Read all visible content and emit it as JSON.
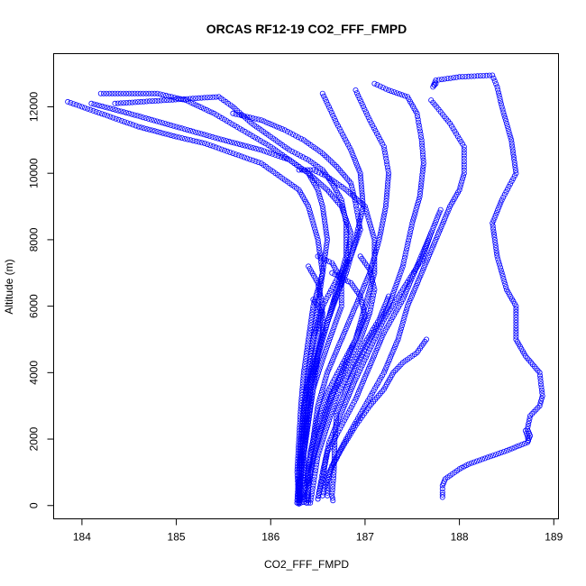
{
  "chart_data": {
    "type": "scatter",
    "title": "ORCAS RF12-19 CO2_FFF_FMPD",
    "xlabel": "CO2_FFF_FMPD",
    "ylabel": "Altitude (m)",
    "xlim": [
      183.7,
      189.05
    ],
    "ylim": [
      -400,
      13600
    ],
    "xticks": [
      184,
      185,
      186,
      187,
      188,
      189
    ],
    "yticks": [
      0,
      2000,
      4000,
      6000,
      8000,
      10000,
      12000
    ],
    "marker": "open-circle",
    "color": "#0000ff",
    "grid": false,
    "profiles": [
      [
        [
          186.55,
          12400
        ],
        [
          186.7,
          11500
        ],
        [
          186.85,
          10700
        ],
        [
          186.95,
          10000
        ],
        [
          186.98,
          9000
        ],
        [
          186.9,
          8000
        ],
        [
          186.8,
          7000
        ],
        [
          186.65,
          6000
        ],
        [
          186.55,
          5000
        ],
        [
          186.45,
          4000
        ],
        [
          186.4,
          3000
        ],
        [
          186.35,
          2000
        ],
        [
          186.3,
          1000
        ],
        [
          186.3,
          50
        ]
      ],
      [
        [
          186.9,
          12500
        ],
        [
          187.05,
          11600
        ],
        [
          187.2,
          10800
        ],
        [
          187.25,
          10000
        ],
        [
          187.22,
          9000
        ],
        [
          187.15,
          8000
        ],
        [
          187.05,
          7000
        ],
        [
          186.9,
          6000
        ],
        [
          186.75,
          5000
        ],
        [
          186.6,
          4000
        ],
        [
          186.5,
          3000
        ],
        [
          186.45,
          2000
        ],
        [
          186.4,
          1000
        ],
        [
          186.4,
          80
        ]
      ],
      [
        [
          187.1,
          12700
        ],
        [
          187.25,
          12500
        ],
        [
          187.45,
          12300
        ],
        [
          187.55,
          11800
        ],
        [
          187.6,
          11000
        ],
        [
          187.62,
          10300
        ],
        [
          187.58,
          9300
        ],
        [
          187.5,
          8500
        ],
        [
          187.4,
          7200
        ],
        [
          187.25,
          6000
        ],
        [
          187.05,
          5000
        ],
        [
          186.9,
          4200
        ],
        [
          186.8,
          3500
        ],
        [
          186.7,
          2800
        ],
        [
          186.68,
          2000
        ],
        [
          186.67,
          1000
        ],
        [
          186.65,
          300
        ],
        [
          186.66,
          150
        ]
      ],
      [
        [
          187.7,
          12200
        ],
        [
          187.9,
          11500
        ],
        [
          188.05,
          10800
        ],
        [
          188.05,
          10000
        ],
        [
          188.0,
          9500
        ],
        [
          187.9,
          9000
        ],
        [
          187.75,
          8000
        ],
        [
          187.6,
          7000
        ],
        [
          187.45,
          6000
        ],
        [
          187.35,
          5000
        ],
        [
          187.2,
          4000
        ],
        [
          187.0,
          3000
        ],
        [
          186.8,
          2000
        ],
        [
          186.65,
          1200
        ],
        [
          186.6,
          700
        ],
        [
          186.6,
          300
        ]
      ],
      [
        [
          187.75,
          12700
        ],
        [
          187.72,
          12600
        ],
        [
          187.75,
          12800
        ],
        [
          188.0,
          12900
        ],
        [
          188.35,
          12950
        ],
        [
          188.4,
          12600
        ],
        [
          188.45,
          12000
        ],
        [
          188.55,
          11000
        ],
        [
          188.6,
          10000
        ],
        [
          188.45,
          9200
        ],
        [
          188.35,
          8500
        ],
        [
          188.4,
          7500
        ],
        [
          188.5,
          6500
        ],
        [
          188.6,
          6000
        ],
        [
          188.6,
          5000
        ],
        [
          188.7,
          4500
        ],
        [
          188.85,
          4000
        ],
        [
          188.88,
          3300
        ],
        [
          188.85,
          3000
        ],
        [
          188.75,
          2700
        ],
        [
          188.72,
          2300
        ],
        [
          188.75,
          2100
        ],
        [
          188.72,
          1900
        ],
        [
          188.5,
          1650
        ],
        [
          188.3,
          1450
        ],
        [
          188.1,
          1250
        ],
        [
          188.0,
          1100
        ],
        [
          187.95,
          1000
        ],
        [
          187.85,
          800
        ],
        [
          187.82,
          600
        ],
        [
          187.82,
          400
        ],
        [
          187.82,
          250
        ]
      ],
      [
        [
          188.7,
          2250
        ],
        [
          188.72,
          2100
        ],
        [
          188.73,
          1950
        ]
      ],
      [
        [
          183.85,
          12150
        ],
        [
          184.0,
          12000
        ],
        [
          184.3,
          11700
        ],
        [
          184.6,
          11400
        ],
        [
          185.0,
          11100
        ],
        [
          185.3,
          10900
        ],
        [
          185.6,
          10600
        ],
        [
          185.9,
          10300
        ],
        [
          186.1,
          9900
        ],
        [
          186.3,
          9500
        ],
        [
          186.4,
          9000
        ],
        [
          186.45,
          8500
        ],
        [
          186.5,
          8000
        ],
        [
          186.55,
          7000
        ],
        [
          186.45,
          6000
        ],
        [
          186.4,
          5000
        ],
        [
          186.35,
          4000
        ],
        [
          186.32,
          3000
        ],
        [
          186.3,
          2000
        ],
        [
          186.28,
          1000
        ],
        [
          186.3,
          100
        ]
      ],
      [
        [
          184.2,
          12400
        ],
        [
          184.8,
          12400
        ],
        [
          185.1,
          12200
        ],
        [
          185.4,
          11800
        ],
        [
          185.7,
          11300
        ],
        [
          186.0,
          10800
        ],
        [
          186.2,
          10400
        ],
        [
          186.4,
          10000
        ],
        [
          186.5,
          9500
        ],
        [
          186.55,
          9000
        ],
        [
          186.6,
          8000
        ],
        [
          186.55,
          7000
        ],
        [
          186.5,
          6000
        ],
        [
          186.45,
          5000
        ],
        [
          186.4,
          4000
        ],
        [
          186.35,
          3000
        ],
        [
          186.32,
          2000
        ],
        [
          186.3,
          1000
        ],
        [
          186.28,
          80
        ]
      ],
      [
        [
          184.35,
          12100
        ],
        [
          184.9,
          12200
        ],
        [
          185.45,
          12300
        ],
        [
          185.6,
          12000
        ],
        [
          185.8,
          11500
        ],
        [
          186.0,
          11100
        ],
        [
          186.2,
          10700
        ],
        [
          186.4,
          10400
        ],
        [
          186.55,
          10100
        ],
        [
          186.65,
          9700
        ],
        [
          186.75,
          9200
        ],
        [
          186.8,
          8500
        ],
        [
          186.8,
          7500
        ],
        [
          186.7,
          6500
        ],
        [
          186.6,
          5500
        ],
        [
          186.5,
          4500
        ],
        [
          186.45,
          3500
        ],
        [
          186.4,
          2500
        ],
        [
          186.35,
          1500
        ],
        [
          186.35,
          500
        ],
        [
          186.3,
          80
        ]
      ],
      [
        [
          185.6,
          11800
        ],
        [
          185.9,
          11600
        ],
        [
          186.15,
          11300
        ],
        [
          186.35,
          11000
        ],
        [
          186.55,
          10600
        ],
        [
          186.7,
          10200
        ],
        [
          186.85,
          9700
        ],
        [
          186.9,
          9100
        ],
        [
          186.95,
          8300
        ],
        [
          186.85,
          7500
        ],
        [
          186.7,
          6800
        ],
        [
          186.55,
          6000
        ],
        [
          186.45,
          5000
        ],
        [
          186.4,
          4000
        ],
        [
          186.35,
          3000
        ],
        [
          186.32,
          2000
        ],
        [
          186.3,
          1000
        ],
        [
          186.3,
          80
        ]
      ],
      [
        [
          184.1,
          12100
        ],
        [
          184.5,
          11800
        ],
        [
          185.0,
          11400
        ],
        [
          185.5,
          11000
        ],
        [
          185.9,
          10700
        ],
        [
          186.2,
          10400
        ],
        [
          186.4,
          10000
        ],
        [
          186.6,
          9500
        ],
        [
          186.75,
          9000
        ],
        [
          186.85,
          8200
        ],
        [
          186.8,
          7200
        ],
        [
          186.7,
          6300
        ],
        [
          186.6,
          5500
        ],
        [
          186.5,
          4500
        ],
        [
          186.42,
          3500
        ],
        [
          186.38,
          2500
        ],
        [
          186.35,
          1500
        ],
        [
          186.35,
          500
        ],
        [
          186.32,
          80
        ]
      ],
      [
        [
          186.3,
          10100
        ],
        [
          186.45,
          10100
        ],
        [
          186.6,
          9900
        ],
        [
          186.8,
          9500
        ],
        [
          187.0,
          9000
        ],
        [
          187.1,
          8000
        ],
        [
          187.1,
          7000
        ],
        [
          187.0,
          6000
        ],
        [
          186.9,
          5000
        ],
        [
          186.75,
          4000
        ],
        [
          186.6,
          3000
        ],
        [
          186.5,
          2000
        ],
        [
          186.42,
          1000
        ],
        [
          186.38,
          80
        ]
      ],
      [
        [
          187.8,
          8900
        ],
        [
          187.7,
          8200
        ],
        [
          187.55,
          7200
        ],
        [
          187.4,
          6200
        ],
        [
          187.2,
          5200
        ],
        [
          187.05,
          4200
        ],
        [
          186.9,
          3200
        ],
        [
          186.75,
          2400
        ],
        [
          186.6,
          1600
        ],
        [
          186.55,
          800
        ],
        [
          186.5,
          200
        ]
      ],
      [
        [
          187.7,
          8200
        ],
        [
          187.6,
          7400
        ],
        [
          187.4,
          6500
        ],
        [
          187.2,
          5600
        ],
        [
          187.05,
          4700
        ],
        [
          186.9,
          3800
        ],
        [
          186.75,
          2800
        ],
        [
          186.62,
          1900
        ],
        [
          186.55,
          1000
        ],
        [
          186.5,
          200
        ]
      ],
      [
        [
          187.65,
          5000
        ],
        [
          187.55,
          4600
        ],
        [
          187.4,
          4300
        ],
        [
          187.3,
          4000
        ],
        [
          187.2,
          3500
        ],
        [
          187.05,
          3000
        ],
        [
          186.9,
          2400
        ],
        [
          186.75,
          1700
        ],
        [
          186.62,
          1000
        ],
        [
          186.55,
          300
        ]
      ],
      [
        [
          186.65,
          7000
        ],
        [
          186.85,
          6700
        ],
        [
          186.95,
          6300
        ],
        [
          187.0,
          5700
        ],
        [
          186.9,
          5000
        ],
        [
          186.75,
          4200
        ],
        [
          186.6,
          3400
        ],
        [
          186.5,
          2600
        ],
        [
          186.42,
          1600
        ],
        [
          186.38,
          700
        ],
        [
          186.35,
          100
        ]
      ],
      [
        [
          186.5,
          7500
        ],
        [
          186.65,
          7300
        ],
        [
          186.75,
          6800
        ],
        [
          186.75,
          6000
        ],
        [
          186.65,
          5200
        ],
        [
          186.55,
          4400
        ],
        [
          186.45,
          3500
        ],
        [
          186.4,
          2600
        ],
        [
          186.35,
          1700
        ],
        [
          186.32,
          800
        ],
        [
          186.3,
          80
        ]
      ],
      [
        [
          186.95,
          7500
        ],
        [
          187.05,
          7100
        ],
        [
          187.1,
          6500
        ],
        [
          187.05,
          5800
        ],
        [
          186.95,
          5000
        ],
        [
          186.8,
          4200
        ],
        [
          186.65,
          3300
        ],
        [
          186.55,
          2400
        ],
        [
          186.45,
          1400
        ],
        [
          186.4,
          500
        ],
        [
          186.38,
          80
        ]
      ],
      [
        [
          186.45,
          6200
        ],
        [
          186.55,
          5800
        ],
        [
          186.55,
          5200
        ],
        [
          186.5,
          4600
        ],
        [
          186.42,
          3800
        ],
        [
          186.38,
          3000
        ],
        [
          186.34,
          2000
        ],
        [
          186.32,
          1000
        ],
        [
          186.3,
          80
        ]
      ],
      [
        [
          187.25,
          6300
        ],
        [
          187.15,
          5600
        ],
        [
          187.0,
          4900
        ],
        [
          186.85,
          4100
        ],
        [
          186.7,
          3300
        ],
        [
          186.6,
          2400
        ],
        [
          186.5,
          1500
        ],
        [
          186.45,
          600
        ],
        [
          186.42,
          80
        ]
      ],
      [
        [
          186.4,
          7200
        ],
        [
          186.5,
          6700
        ],
        [
          186.55,
          6000
        ],
        [
          186.5,
          5000
        ],
        [
          186.42,
          4000
        ],
        [
          186.36,
          3000
        ],
        [
          186.32,
          2000
        ],
        [
          186.3,
          1000
        ],
        [
          186.28,
          80
        ]
      ]
    ]
  }
}
